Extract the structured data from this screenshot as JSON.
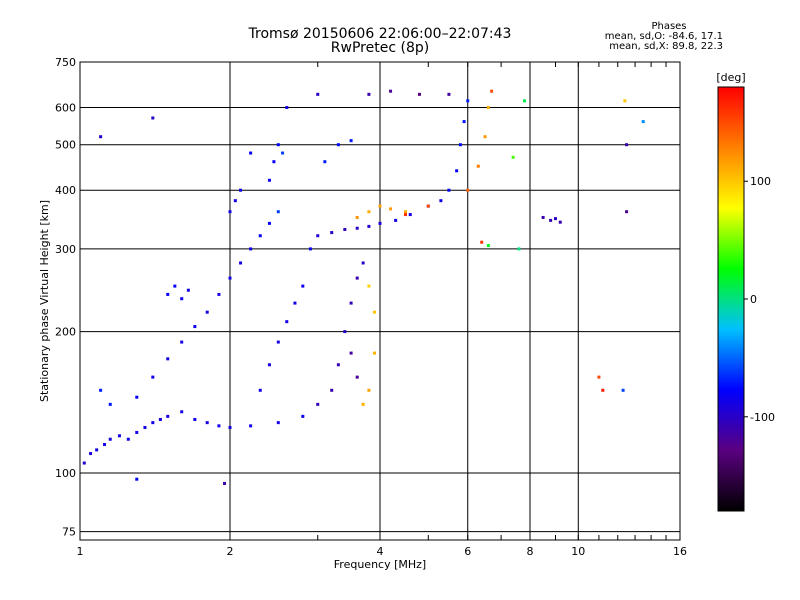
{
  "chart_data": {
    "type": "scatter",
    "title": "Tromsø 20150606 22:06:00–22:07:43",
    "subtitle": "RwPretec (8p)",
    "xlabel": "Frequency [MHz]",
    "ylabel": "Stationary phase Virtual Height [km]",
    "x_scale": "log",
    "y_scale": "log",
    "xlim": [
      1,
      16
    ],
    "ylim": [
      72,
      750
    ],
    "x_ticks": [
      1,
      2,
      4,
      6,
      8,
      10,
      16
    ],
    "x_tick_labels": [
      "1",
      "2",
      "4",
      "6",
      "8",
      "10",
      "16"
    ],
    "y_ticks": [
      75,
      100,
      200,
      300,
      400,
      500,
      600,
      750
    ],
    "y_tick_labels": [
      "75",
      "100",
      "200",
      "300",
      "400",
      "500",
      "600",
      "750"
    ],
    "grid": true,
    "colorbar": {
      "label": "[deg]",
      "range": [
        -180,
        180
      ],
      "ticks": [
        100,
        0,
        -100
      ],
      "tick_labels": [
        "100",
        "0",
        "-100"
      ],
      "colors": [
        "#000000",
        "#5a0080",
        "#0000ff",
        "#00c0ff",
        "#00ff00",
        "#ffff00",
        "#ff8000",
        "#ff0000"
      ]
    },
    "annotation": {
      "header": "Phases",
      "line1": "mean, sd,O:  -84.6, 17.1",
      "line2": "mean, sd,X:  89.8, 22.3"
    },
    "series": [
      {
        "points": [
          [
            1.02,
            105,
            -95
          ],
          [
            1.05,
            110,
            -92
          ],
          [
            1.08,
            112,
            -90
          ],
          [
            1.12,
            115,
            -88
          ],
          [
            1.15,
            118,
            -92
          ],
          [
            1.2,
            120,
            -90
          ],
          [
            1.25,
            118,
            -85
          ],
          [
            1.3,
            122,
            -88
          ],
          [
            1.35,
            125,
            -90
          ],
          [
            1.4,
            128,
            -86
          ],
          [
            1.45,
            130,
            -90
          ],
          [
            1.5,
            132,
            -88
          ],
          [
            1.6,
            135,
            -90
          ],
          [
            1.7,
            130,
            -86
          ],
          [
            1.8,
            128,
            -92
          ],
          [
            1.9,
            126,
            -88
          ],
          [
            2.0,
            125,
            -90
          ],
          [
            2.2,
            126,
            -86
          ],
          [
            2.5,
            128,
            -88
          ],
          [
            2.8,
            132,
            -84
          ],
          [
            1.1,
            150,
            -70
          ],
          [
            1.15,
            140,
            -72
          ],
          [
            1.3,
            145,
            -80
          ],
          [
            1.4,
            160,
            -85
          ],
          [
            1.5,
            175,
            -88
          ],
          [
            1.6,
            190,
            -90
          ],
          [
            1.7,
            205,
            -86
          ],
          [
            1.8,
            220,
            -88
          ],
          [
            1.9,
            240,
            -90
          ],
          [
            2.0,
            260,
            -86
          ],
          [
            2.1,
            280,
            -88
          ],
          [
            2.2,
            300,
            -84
          ],
          [
            2.3,
            320,
            -82
          ],
          [
            2.4,
            340,
            -80
          ],
          [
            2.5,
            360,
            -60
          ],
          [
            1.5,
            240,
            -80
          ],
          [
            1.55,
            250,
            -82
          ],
          [
            1.6,
            235,
            -84
          ],
          [
            1.65,
            245,
            -86
          ],
          [
            2.0,
            360,
            -88
          ],
          [
            2.05,
            380,
            -90
          ],
          [
            2.1,
            400,
            -86
          ],
          [
            2.4,
            420,
            -84
          ],
          [
            2.45,
            460,
            -80
          ],
          [
            2.5,
            500,
            -78
          ],
          [
            2.55,
            480,
            -60
          ],
          [
            2.3,
            150,
            -88
          ],
          [
            2.4,
            170,
            -90
          ],
          [
            2.5,
            190,
            -92
          ],
          [
            2.6,
            210,
            -88
          ],
          [
            2.7,
            230,
            -86
          ],
          [
            2.8,
            250,
            -84
          ],
          [
            2.9,
            300,
            -82
          ],
          [
            3.0,
            320,
            -95
          ],
          [
            3.2,
            325,
            -100
          ],
          [
            3.4,
            330,
            -105
          ],
          [
            3.6,
            332,
            -100
          ],
          [
            3.8,
            335,
            -95
          ],
          [
            4.0,
            340,
            -92
          ],
          [
            4.3,
            345,
            -90
          ],
          [
            4.6,
            355,
            -88
          ],
          [
            5.0,
            370,
            -86
          ],
          [
            5.3,
            380,
            -82
          ],
          [
            5.5,
            400,
            -80
          ],
          [
            5.7,
            440,
            -78
          ],
          [
            5.8,
            500,
            -75
          ],
          [
            5.9,
            560,
            -72
          ],
          [
            6.0,
            620,
            -70
          ],
          [
            3.0,
            140,
            -105
          ],
          [
            3.2,
            150,
            -110
          ],
          [
            3.3,
            170,
            -108
          ],
          [
            3.4,
            200,
            -100
          ],
          [
            3.5,
            230,
            -105
          ],
          [
            3.6,
            260,
            -110
          ],
          [
            3.7,
            280,
            -100
          ],
          [
            3.5,
            180,
            -115
          ],
          [
            3.6,
            160,
            -118
          ],
          [
            3.6,
            350,
            120
          ],
          [
            3.8,
            360,
            110
          ],
          [
            4.0,
            370,
            115
          ],
          [
            4.2,
            365,
            118
          ],
          [
            4.5,
            360,
            112
          ],
          [
            3.7,
            140,
            110
          ],
          [
            3.8,
            150,
            115
          ],
          [
            3.9,
            180,
            108
          ],
          [
            3.9,
            220,
            100
          ],
          [
            3.8,
            250,
            95
          ],
          [
            4.5,
            355,
            160
          ],
          [
            5.0,
            370,
            150
          ],
          [
            6.0,
            400,
            140
          ],
          [
            6.3,
            450,
            130
          ],
          [
            6.5,
            520,
            120
          ],
          [
            6.6,
            600,
            110
          ],
          [
            6.7,
            650,
            150
          ],
          [
            6.4,
            310,
            160
          ],
          [
            6.6,
            305,
            20
          ],
          [
            7.4,
            470,
            40
          ],
          [
            7.6,
            300,
            0
          ],
          [
            7.8,
            620,
            10
          ],
          [
            8.5,
            350,
            -110
          ],
          [
            8.8,
            345,
            -105
          ],
          [
            9.0,
            348,
            -100
          ],
          [
            9.2,
            342,
            -108
          ],
          [
            11.0,
            160,
            150
          ],
          [
            11.2,
            150,
            170
          ],
          [
            12.4,
            620,
            100
          ],
          [
            12.5,
            500,
            -110
          ],
          [
            12.5,
            360,
            -120
          ],
          [
            12.3,
            150,
            -60
          ],
          [
            13.5,
            560,
            -40
          ],
          [
            3.8,
            640,
            -110
          ],
          [
            4.2,
            650,
            -120
          ],
          [
            4.8,
            640,
            -130
          ],
          [
            5.5,
            640,
            -115
          ],
          [
            2.6,
            600,
            -90
          ],
          [
            3.0,
            640,
            -100
          ],
          [
            1.4,
            570,
            -100
          ],
          [
            1.1,
            520,
            -95
          ],
          [
            2.2,
            480,
            -80
          ],
          [
            3.1,
            460,
            -70
          ],
          [
            3.3,
            500,
            -75
          ],
          [
            3.5,
            510,
            -72
          ],
          [
            1.95,
            95,
            -110
          ],
          [
            1.3,
            97,
            -80
          ]
        ]
      }
    ]
  }
}
